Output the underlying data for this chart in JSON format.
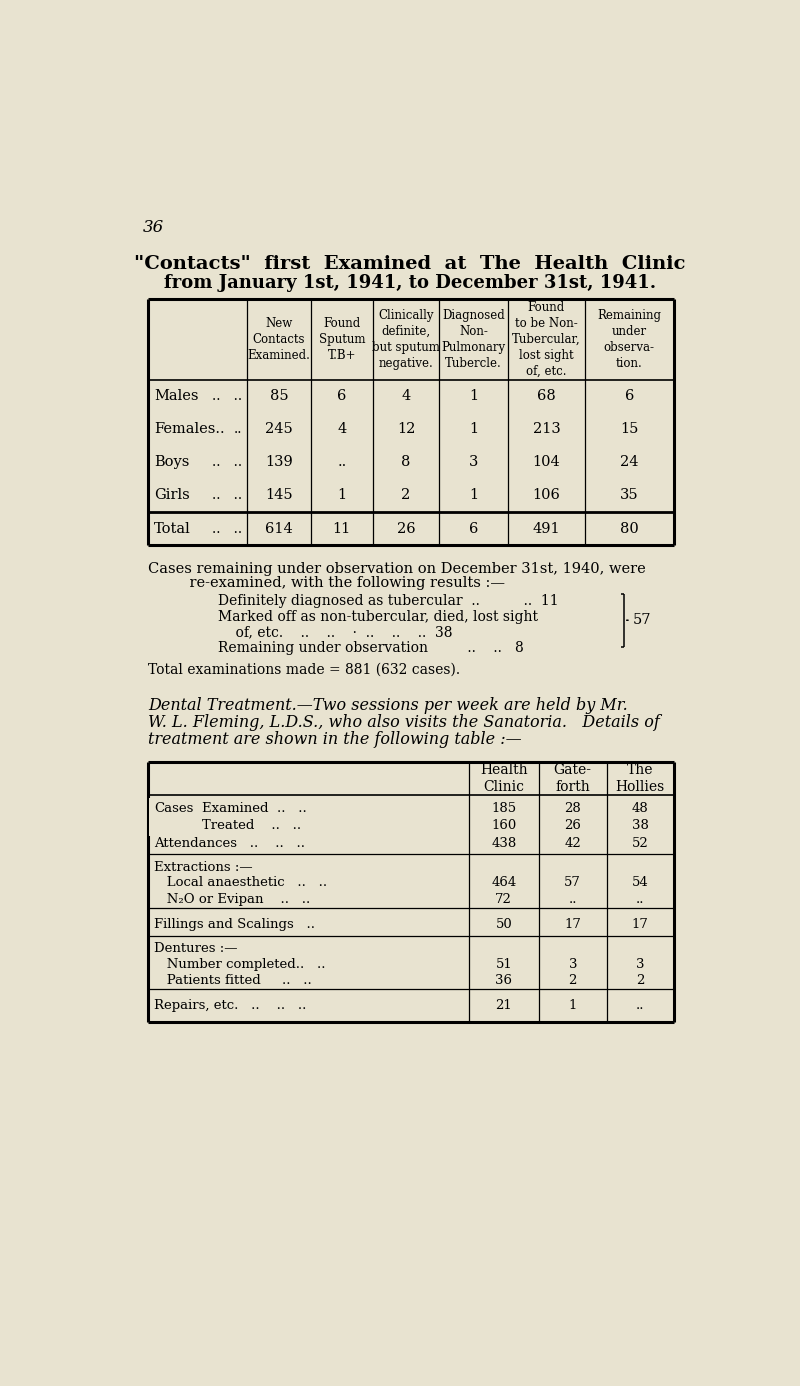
{
  "bg_color": "#e8e3d0",
  "page_number": "36",
  "title_line1": "\"Contacts\"  first  Examined  at  The  Health  Clinic",
  "title_line2": "from January 1st, 1941, to December 31st, 1941.",
  "table1_col_headers": [
    "New\nContacts\nExamined.",
    "Found\nSputum\nT.B+",
    "Clinically\ndefinite,\nbut sputum\nnegative.",
    "Diagnosed\nNon-\nPulmonary\nTubercle.",
    "Found\nto be Non-\nTubercular,\nlost sight\nof, etc.",
    "Remaining\nunder\nobserva-\ntion."
  ],
  "table1_rows": [
    {
      "label": "Males",
      "dots": "..   ..",
      "vals": [
        "85",
        "6",
        "4",
        "1",
        "68",
        "6"
      ]
    },
    {
      "label": "Females..",
      "dots": "..",
      "vals": [
        "245",
        "4",
        "12",
        "1",
        "213",
        "15"
      ]
    },
    {
      "label": "Boys",
      "dots": "..   ..",
      "vals": [
        "139",
        "..",
        "8",
        "3",
        "104",
        "24"
      ]
    },
    {
      "label": "Girls",
      "dots": "..   ..",
      "vals": [
        "145",
        "1",
        "2",
        "1",
        "106",
        "35"
      ]
    },
    {
      "label": "Total",
      "dots": "..   ..",
      "vals": [
        "614",
        "11",
        "26",
        "6",
        "491",
        "80"
      ]
    }
  ],
  "para1": [
    "Cases remaining under observation on December 31st, 1940, were",
    "    re-examined, with the following results :—"
  ],
  "para1_items": [
    "Definitely diagnosed as tubercular  ..          ..  11",
    "Marked off as non-tubercular, died, lost sight",
    "    of, etc.    ..    ..    ·  ..    ..    ..  38",
    "Remaining under observation         ..    ..   8"
  ],
  "brace_label": "57",
  "para2": "Total examinations made = 881 (632 cases).",
  "dental_para": [
    "Dental Treatment.—Two sessions per week are held by Mr.",
    "W. L. Fleming, L.D.S., who also visits the Sanatoria.   Details of",
    "treatment are shown in the following table :—"
  ],
  "table2_col_headers": [
    "Health\nClinic",
    "Gate-\nforth",
    "The\nHollies"
  ],
  "table2_sections": [
    {
      "rows": [
        {
          "label": "Cases   ⎧Examined  ..    ..",
          "vals": [
            "185",
            "28",
            "48"
          ]
        },
        {
          "label": "           ⎩Treated   ..    ..",
          "vals": [
            "160",
            "26",
            "38"
          ]
        },
        {
          "label": "Attendances   ..    ..   ..",
          "vals": [
            "438",
            "42",
            "52"
          ]
        }
      ]
    },
    {
      "section_header": "Extractions :—",
      "rows": [
        {
          "label": "   Local anaesthetic   ..   ..",
          "vals": [
            "464",
            "57",
            "54"
          ]
        },
        {
          "label": "   N₂O or Evipan     ..   ..",
          "vals": [
            "72",
            "..",
            ".."
          ]
        }
      ]
    },
    {
      "rows": [
        {
          "label": "Fillings and Scalings   ..",
          "vals": [
            "50",
            "17",
            "17"
          ]
        }
      ]
    },
    {
      "section_header": "Dentures :—",
      "rows": [
        {
          "label": "   Number completed..   ..",
          "vals": [
            "51",
            "3",
            "3"
          ]
        },
        {
          "label": "   Patients fitted     ..   ..",
          "vals": [
            "36",
            "2",
            "2"
          ]
        }
      ]
    },
    {
      "rows": [
        {
          "label": "Repairs, etc.   ..    ..   ..",
          "vals": [
            "21",
            "1",
            ".."
          ]
        }
      ]
    }
  ]
}
